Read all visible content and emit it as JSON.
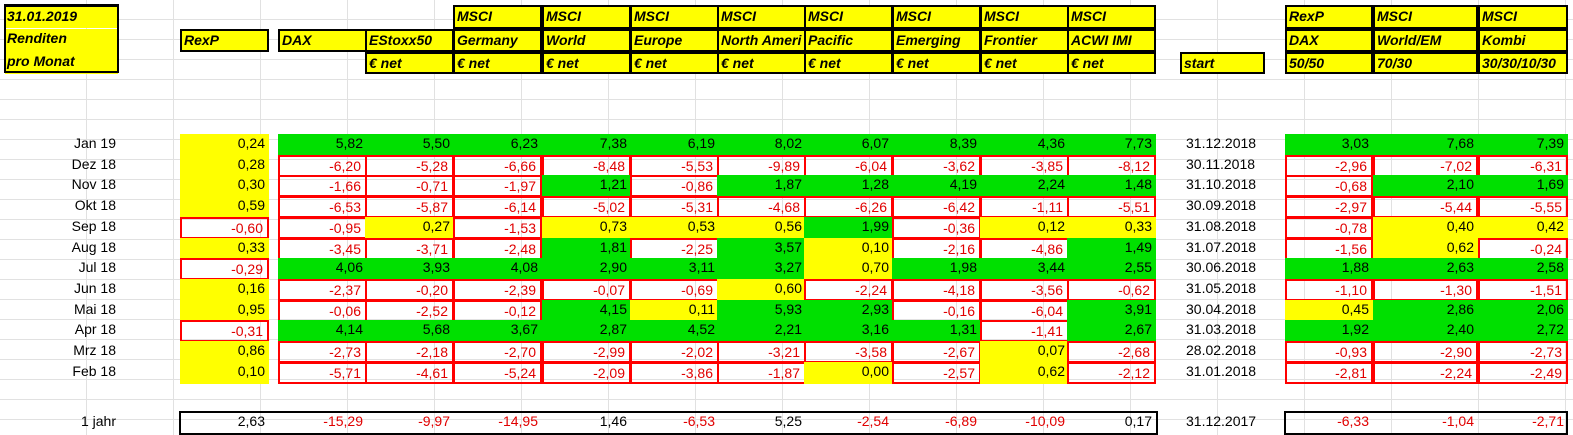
{
  "title": {
    "line1": "31.01.2019",
    "line2": "Renditen",
    "line3": "pro Monat"
  },
  "columns": [
    {
      "l1": "",
      "l2": "RexP",
      "l3": ""
    },
    {
      "l1": "",
      "l2": "DAX",
      "l3": ""
    },
    {
      "l1": "",
      "l2": "EStoxx50",
      "l3": "€ net"
    },
    {
      "l1": "MSCI",
      "l2": "Germany",
      "l3": "€ net"
    },
    {
      "l1": "MSCI",
      "l2": "World",
      "l3": "€ net"
    },
    {
      "l1": "MSCI",
      "l2": "Europe",
      "l3": "€ net"
    },
    {
      "l1": "MSCI",
      "l2": "North Ameri",
      "l3": "€ net"
    },
    {
      "l1": "MSCI",
      "l2": "Pacific",
      "l3": "€ net"
    },
    {
      "l1": "MSCI",
      "l2": "Emerging",
      "l3": "€ net"
    },
    {
      "l1": "MSCI",
      "l2": "Frontier",
      "l3": "€ net"
    },
    {
      "l1": "MSCI",
      "l2": "ACWI IMI",
      "l3": "€ net"
    }
  ],
  "start_label": "start",
  "combo_columns": [
    {
      "l1": "RexP",
      "l2": "DAX",
      "l3": "50/50"
    },
    {
      "l1": "MSCI",
      "l2": "World/EM",
      "l3": "70/30"
    },
    {
      "l1": "MSCI",
      "l2": "Kombi",
      "l3": "30/30/10/30"
    }
  ],
  "rows": [
    {
      "label": "Jan 19",
      "values": [
        "0,24",
        "5,82",
        "5,50",
        "6,23",
        "7,38",
        "6,19",
        "8,02",
        "6,07",
        "8,39",
        "4,36",
        "7,73"
      ],
      "start": "31.12.2018",
      "combo": [
        "3,03",
        "7,68",
        "7,39"
      ]
    },
    {
      "label": "Dez 18",
      "values": [
        "0,28",
        "-6,20",
        "-5,28",
        "-6,66",
        "-8,48",
        "-5,53",
        "-9,89",
        "-6,04",
        "-3,62",
        "-3,85",
        "-8,12"
      ],
      "start": "30.11.2018",
      "combo": [
        "-2,96",
        "-7,02",
        "-6,31"
      ]
    },
    {
      "label": "Nov 18",
      "values": [
        "0,30",
        "-1,66",
        "-0,71",
        "-1,97",
        "1,21",
        "-0,86",
        "1,87",
        "1,28",
        "4,19",
        "2,24",
        "1,48"
      ],
      "start": "31.10.2018",
      "combo": [
        "-0,68",
        "2,10",
        "1,69"
      ]
    },
    {
      "label": "Okt 18",
      "values": [
        "0,59",
        "-6,53",
        "-5,87",
        "-6,14",
        "-5,02",
        "-5,31",
        "-4,68",
        "-6,26",
        "-6,42",
        "-1,11",
        "-5,51"
      ],
      "start": "30.09.2018",
      "combo": [
        "-2,97",
        "-5,44",
        "-5,55"
      ]
    },
    {
      "label": "Sep 18",
      "values": [
        "-0,60",
        "-0,95",
        "0,27",
        "-1,53",
        "0,73",
        "0,53",
        "0,56",
        "1,99",
        "-0,36",
        "0,12",
        "0,33"
      ],
      "start": "31.08.2018",
      "combo": [
        "-0,78",
        "0,40",
        "0,42"
      ]
    },
    {
      "label": "Aug 18",
      "values": [
        "0,33",
        "-3,45",
        "-3,71",
        "-2,48",
        "1,81",
        "-2,25",
        "3,57",
        "0,10",
        "-2,16",
        "-4,86",
        "1,49"
      ],
      "start": "31.07.2018",
      "combo": [
        "-1,56",
        "0,62",
        "-0,24"
      ]
    },
    {
      "label": "Jul 18",
      "values": [
        "-0,29",
        "4,06",
        "3,93",
        "4,08",
        "2,90",
        "3,11",
        "3,27",
        "0,70",
        "1,98",
        "3,44",
        "2,55"
      ],
      "start": "30.06.2018",
      "combo": [
        "1,88",
        "2,63",
        "2,58"
      ]
    },
    {
      "label": "Jun 18",
      "values": [
        "0,16",
        "-2,37",
        "-0,20",
        "-2,39",
        "-0,07",
        "-0,69",
        "0,60",
        "-2,24",
        "-4,18",
        "-3,56",
        "-0,62"
      ],
      "start": "31.05.2018",
      "combo": [
        "-1,10",
        "-1,30",
        "-1,51"
      ]
    },
    {
      "label": "Mai 18",
      "values": [
        "0,95",
        "-0,06",
        "-2,52",
        "-0,12",
        "4,15",
        "0,11",
        "5,93",
        "2,93",
        "-0,16",
        "-6,04",
        "3,91"
      ],
      "start": "30.04.2018",
      "combo": [
        "0,45",
        "2,86",
        "2,06"
      ]
    },
    {
      "label": "Apr 18",
      "values": [
        "-0,31",
        "4,14",
        "5,68",
        "3,67",
        "2,87",
        "4,52",
        "2,21",
        "3,16",
        "1,31",
        "-1,41",
        "2,67"
      ],
      "start": "31.03.2018",
      "combo": [
        "1,92",
        "2,40",
        "2,72"
      ]
    },
    {
      "label": "Mrz 18",
      "values": [
        "0,86",
        "-2,73",
        "-2,18",
        "-2,70",
        "-2,99",
        "-2,02",
        "-3,21",
        "-3,58",
        "-2,67",
        "0,07",
        "-2,68"
      ],
      "start": "28.02.2018",
      "combo": [
        "-0,93",
        "-2,90",
        "-2,73"
      ]
    },
    {
      "label": "Feb 18",
      "values": [
        "0,10",
        "-5,71",
        "-4,61",
        "-5,24",
        "-2,09",
        "-3,86",
        "-1,87",
        "0,00",
        "-2,57",
        "0,62",
        "-2,12"
      ],
      "start": "31.01.2018",
      "combo": [
        "-2,81",
        "-2,24",
        "-2,49"
      ]
    }
  ],
  "total": {
    "label": "1 jahr",
    "values": [
      "2,63",
      "-15,29",
      "-9,97",
      "-14,95",
      "1,46",
      "-6,53",
      "5,25",
      "-2,54",
      "-6,89",
      "-10,09",
      "0,17"
    ],
    "start": "31.12.2017",
    "combo": [
      "-6,33",
      "-1,04",
      "-2,71"
    ]
  },
  "colors": {
    "yellow": "#ffff00",
    "green": "#00e000",
    "negative": "#e00000",
    "grid": "#e1e1e1"
  }
}
